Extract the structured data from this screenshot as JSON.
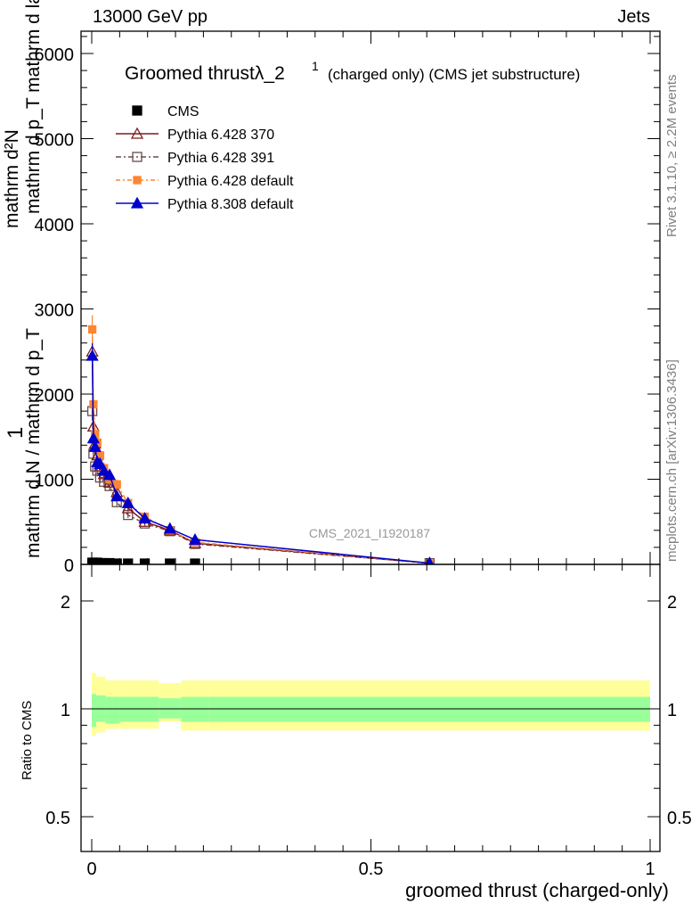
{
  "header": {
    "left": "13000 GeV pp",
    "right": "Jets"
  },
  "side_labels": {
    "rivet": "Rivet 3.1.10, ≥ 2.2M events",
    "mcplots": "mcplots.cern.ch [arXiv:1306.3436]"
  },
  "ylabel_parts": {
    "numerator": "mathrm d²N",
    "denominator_top": "mathrm d p_T mathrm d lambda",
    "one": "1",
    "prefix": "mathrm d N / mathrm d p_T",
    "suffix": "mathrm d p"
  },
  "ratio_label": "Ratio to CMS",
  "legend_title": {
    "main": "Groomed thrustλ_2",
    "sup": "1",
    "sub": "(charged only) (CMS jet substructure)"
  },
  "watermark": "CMS_2021_I1920187",
  "colors": {
    "cms": "#000000",
    "p370": "#7f1a1a",
    "p391": "#6b4c4c",
    "pdefault": "#ff8533",
    "p8": "#0000cc",
    "band_inner": "#99ff99",
    "band_outer": "#ffff99"
  },
  "chart_data": {
    "type": "line",
    "xlabel": "groomed thrust (charged-only)",
    "ylabel": "1 / (mathrm d N / mathrm d p_T) · mathrm d²N / (mathrm d p_T mathrm d lambda)",
    "xlim": [
      0,
      1
    ],
    "ylim": [
      0,
      6300
    ],
    "x_ticks": [
      "0",
      "0.5",
      "1"
    ],
    "y_ticks": [
      "0",
      "1000",
      "2000",
      "3000",
      "4000",
      "5000",
      "6000"
    ],
    "series": [
      {
        "name": "CMS",
        "x": [
          0.001,
          0.003,
          0.006,
          0.01,
          0.015,
          0.022,
          0.032,
          0.045,
          0.065,
          0.095,
          0.14,
          0.185
        ],
        "y": [
          20,
          20,
          20,
          20,
          15,
          15,
          15,
          10,
          10,
          10,
          10,
          10
        ]
      },
      {
        "name": "Pythia 6.428 370",
        "x": [
          0.001,
          0.003,
          0.006,
          0.01,
          0.015,
          0.022,
          0.032,
          0.045,
          0.065,
          0.095,
          0.14,
          0.185,
          0.605
        ],
        "y": [
          2500,
          1620,
          1420,
          1280,
          1150,
          1060,
          960,
          850,
          660,
          500,
          400,
          250,
          15
        ]
      },
      {
        "name": "Pythia 6.428 391",
        "x": [
          0.001,
          0.003,
          0.006,
          0.01,
          0.015,
          0.022,
          0.032,
          0.045,
          0.065,
          0.095,
          0.14,
          0.185,
          0.605
        ],
        "y": [
          1800,
          1300,
          1150,
          1100,
          1020,
          970,
          920,
          730,
          580,
          480,
          390,
          240,
          15
        ]
      },
      {
        "name": "Pythia 6.428 default",
        "x": [
          0.001,
          0.003,
          0.006,
          0.01,
          0.015,
          0.022,
          0.032,
          0.045,
          0.065,
          0.095,
          0.14,
          0.185,
          0.605
        ],
        "y": [
          2760,
          1880,
          1530,
          1430,
          1280,
          1130,
          1000,
          940,
          720,
          560,
          400,
          260,
          15
        ]
      },
      {
        "name": "Pythia 8.308 default",
        "x": [
          0.001,
          0.003,
          0.006,
          0.01,
          0.015,
          0.022,
          0.032,
          0.045,
          0.065,
          0.095,
          0.14,
          0.185,
          0.605
        ],
        "y": [
          2450,
          1480,
          1380,
          1200,
          1180,
          1100,
          1050,
          800,
          720,
          540,
          420,
          290,
          15
        ]
      }
    ],
    "ratio": {
      "ylabel": "Ratio to CMS",
      "y_ticks": [
        "0.5",
        "1",
        "2"
      ],
      "ylim": [
        0.4,
        2.4
      ],
      "log_scale": true,
      "x_edges": [
        0,
        0.008,
        0.025,
        0.05,
        0.12,
        0.16,
        0.21,
        1.0
      ],
      "inner_band": [
        [
          0.89,
          1.1
        ],
        [
          0.92,
          1.09
        ],
        [
          0.91,
          1.08
        ],
        [
          0.92,
          1.08
        ],
        [
          0.94,
          1.07
        ],
        [
          0.92,
          1.08
        ],
        [
          0.92,
          1.08
        ]
      ],
      "outer_band": [
        [
          0.84,
          1.26
        ],
        [
          0.86,
          1.23
        ],
        [
          0.88,
          1.2
        ],
        [
          0.88,
          1.2
        ],
        [
          0.92,
          1.18
        ],
        [
          0.87,
          1.2
        ],
        [
          0.87,
          1.2
        ]
      ]
    },
    "grid": false,
    "legend_position": "top-left"
  }
}
